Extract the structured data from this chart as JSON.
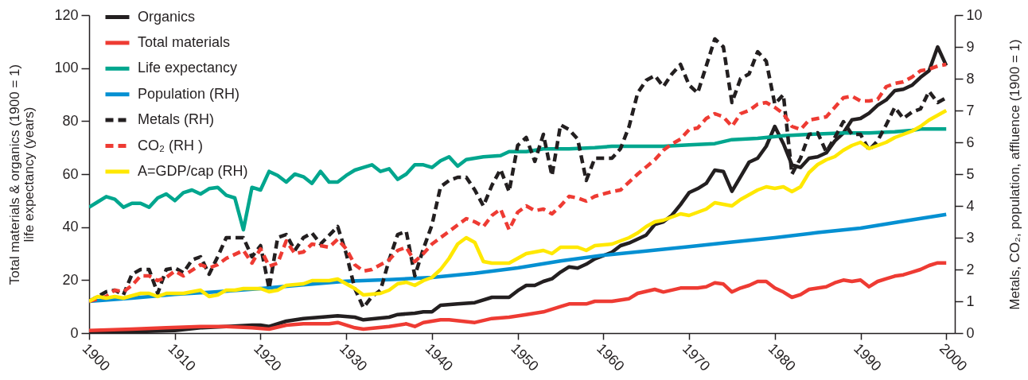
{
  "chart_data": {
    "type": "line",
    "xlim": [
      1900,
      2001
    ],
    "xticks": [
      1900,
      1910,
      1920,
      1930,
      1940,
      1950,
      1960,
      1970,
      1980,
      1990,
      2000
    ],
    "ylim": [
      0,
      120
    ],
    "yticks": [
      0,
      20,
      40,
      60,
      80,
      100,
      120
    ],
    "y2lim": [
      0,
      10
    ],
    "y2ticks": [
      0,
      1,
      2,
      3,
      4,
      5,
      6,
      7,
      8,
      9,
      10
    ],
    "ylabel": "Total materials & organics (1900 = 1)\nlife expectancy (years)",
    "y2label": "Metals, CO₂, population, affluence (1900 = 1)",
    "legend": "top left",
    "series": [
      {
        "name": "Organics",
        "color": "#231f20",
        "line_style": "solid",
        "x": [
          1900,
          1905,
          1910,
          1913,
          1916,
          1919,
          1920,
          1921,
          1923,
          1925,
          1927,
          1929,
          1931,
          1932,
          1935,
          1936,
          1938,
          1939,
          1940,
          1941,
          1943,
          1945,
          1947,
          1949,
          1950,
          1951,
          1952,
          1953,
          1954,
          1955,
          1956,
          1957,
          1958,
          1959,
          1961,
          1962,
          1963,
          1965,
          1966,
          1967,
          1968,
          1969,
          1970,
          1971,
          1972,
          1973,
          1974,
          1975,
          1976,
          1977,
          1978,
          1979,
          1980,
          1981,
          1982,
          1983,
          1984,
          1985,
          1986,
          1987,
          1988,
          1989,
          1990,
          1991,
          1992,
          1993,
          1994,
          1995,
          1996,
          1997,
          1998,
          1999,
          2000
        ],
        "values": [
          0.5,
          0.5,
          1,
          2,
          2.5,
          3,
          3,
          2.5,
          4.5,
          5.5,
          6,
          6.5,
          6,
          5,
          6,
          7,
          7.5,
          8,
          8,
          10.5,
          11,
          11.5,
          13.5,
          13.5,
          16,
          18,
          18,
          19.5,
          20.5,
          23,
          25,
          24.5,
          26,
          28,
          30.5,
          33,
          34,
          37,
          41,
          42,
          44.5,
          48.5,
          53,
          54.5,
          56.5,
          61.5,
          61,
          53.5,
          59,
          64.5,
          66,
          70.5,
          78,
          71.5,
          63.5,
          62.5,
          66,
          66.5,
          68,
          72.5,
          75.5,
          80.5,
          81,
          83,
          86,
          88,
          91.5,
          92,
          93.5,
          96.5,
          99,
          108,
          101
        ]
      },
      {
        "name": "Total materials",
        "color": "#ee3b33",
        "line_style": "solid",
        "x": [
          1900,
          1905,
          1909,
          1913,
          1916,
          1919,
          1921,
          1923,
          1925,
          1928,
          1929,
          1931,
          1932,
          1935,
          1937,
          1938,
          1939,
          1941,
          1942,
          1945,
          1947,
          1949,
          1951,
          1953,
          1955,
          1956,
          1958,
          1959,
          1961,
          1963,
          1964,
          1966,
          1967,
          1969,
          1971,
          1972,
          1973,
          1974,
          1975,
          1976,
          1977,
          1978,
          1979,
          1980,
          1981,
          1982,
          1983,
          1984,
          1986,
          1987,
          1988,
          1989,
          1990,
          1991,
          1992,
          1993,
          1994,
          1995,
          1996,
          1997,
          1998,
          1999,
          2000
        ],
        "values": [
          1,
          1.5,
          2,
          2.5,
          2.5,
          2,
          1.5,
          3,
          3.5,
          3.5,
          4,
          2,
          1.5,
          2.5,
          3.5,
          2.5,
          4,
          5,
          5,
          4,
          5.5,
          6,
          7,
          8,
          10,
          11,
          11,
          12,
          12,
          13,
          15,
          16.5,
          15.5,
          17,
          17,
          17.5,
          19,
          18.5,
          15.5,
          17,
          18,
          19.5,
          19.5,
          17,
          15.5,
          13.5,
          14.5,
          16.5,
          17.5,
          19,
          20,
          19.5,
          20,
          17.5,
          19.5,
          20.5,
          21.5,
          22,
          23,
          24,
          25.5,
          26.5,
          26.5
        ]
      },
      {
        "name": "Life expectancy",
        "color": "#00a68e",
        "line_style": "solid",
        "x": [
          1900,
          1901,
          1902,
          1903,
          1904,
          1905,
          1906,
          1907,
          1908,
          1909,
          1910,
          1911,
          1912,
          1913,
          1914,
          1915,
          1916,
          1917,
          1918,
          1919,
          1920,
          1921,
          1922,
          1923,
          1924,
          1925,
          1926,
          1927,
          1928,
          1929,
          1930,
          1931,
          1932,
          1933,
          1934,
          1935,
          1936,
          1937,
          1938,
          1939,
          1940,
          1941,
          1942,
          1943,
          1944,
          1946,
          1948,
          1949,
          1951,
          1953,
          1956,
          1959,
          1961,
          1964,
          1967,
          1970,
          1973,
          1975,
          1978,
          1981,
          1984,
          1988,
          1991,
          1994,
          1996,
          1997,
          2000
        ],
        "values": [
          47.5,
          49.5,
          51.5,
          50.5,
          47.5,
          49,
          49,
          47.5,
          51,
          52.5,
          50,
          53,
          54,
          52.5,
          54.5,
          55,
          52,
          51,
          39,
          55,
          54,
          61,
          59.5,
          57,
          60,
          59,
          56.5,
          61,
          57,
          57,
          59.5,
          61.5,
          62.5,
          63.5,
          61,
          62,
          58,
          60,
          63.5,
          63.5,
          62.5,
          65,
          66.5,
          63,
          65.5,
          66.5,
          67,
          68.5,
          68.5,
          69.5,
          69.5,
          70,
          70.5,
          70.5,
          70.5,
          71,
          71.5,
          73,
          73.5,
          74.5,
          75,
          75.5,
          75.5,
          76,
          76.5,
          77,
          77
        ]
      },
      {
        "name": "Population (RH)",
        "color": "#0590d2",
        "line_style": "solid",
        "axis": "y2",
        "x": [
          1900,
          1905,
          1910,
          1915,
          1920,
          1925,
          1930,
          1935,
          1940,
          1945,
          1950,
          1955,
          1960,
          1965,
          1970,
          1975,
          1980,
          1985,
          1990,
          1995,
          2000
        ],
        "values": [
          1,
          1.1,
          1.22,
          1.3,
          1.4,
          1.52,
          1.63,
          1.68,
          1.75,
          1.88,
          2.05,
          2.27,
          2.45,
          2.58,
          2.72,
          2.86,
          3,
          3.16,
          3.3,
          3.52,
          3.73
        ]
      },
      {
        "name": "Metals (RH)",
        "color": "#231f20",
        "line_style": "dashed",
        "axis": "y2",
        "x": [
          1900,
          1902,
          1903,
          1904,
          1905,
          1906,
          1907,
          1908,
          1909,
          1910,
          1911,
          1912,
          1913,
          1914,
          1915,
          1916,
          1918,
          1919,
          1920,
          1921,
          1922,
          1923,
          1924,
          1925,
          1926,
          1927,
          1929,
          1930,
          1931,
          1932,
          1933,
          1934,
          1935,
          1936,
          1937,
          1938,
          1939,
          1940,
          1941,
          1942,
          1943,
          1944,
          1945,
          1946,
          1947,
          1948,
          1949,
          1950,
          1951,
          1952,
          1953,
          1954,
          1955,
          1956,
          1957,
          1958,
          1959,
          1961,
          1962,
          1963,
          1964,
          1965,
          1966,
          1967,
          1968,
          1969,
          1970,
          1971,
          1972,
          1973,
          1974,
          1975,
          1976,
          1977,
          1978,
          1979,
          1980,
          1981,
          1982,
          1983,
          1984,
          1985,
          1986,
          1987,
          1988,
          1989,
          1990,
          1991,
          1992,
          1993,
          1994,
          1995,
          1996,
          1997,
          1998,
          1999,
          2000
        ],
        "values": [
          1,
          1.3,
          1.35,
          1.2,
          1.85,
          2,
          2,
          1.25,
          2,
          2.05,
          1.9,
          2.3,
          2.4,
          1.85,
          2.4,
          3,
          3,
          2.4,
          2.75,
          1.4,
          3,
          3.1,
          2.6,
          3,
          3.15,
          2.8,
          3.35,
          2.5,
          1.4,
          0.8,
          1.15,
          1.35,
          2.3,
          3.1,
          3.2,
          1.8,
          2.65,
          3.4,
          4.6,
          4.8,
          4.9,
          4.9,
          4.5,
          4,
          4.65,
          5.15,
          4.45,
          5.9,
          6.15,
          5.4,
          6.25,
          4.95,
          6.55,
          6.4,
          6.1,
          4.8,
          5.5,
          5.5,
          5.8,
          6.5,
          7.55,
          7.95,
          8.1,
          7.75,
          8.15,
          8.45,
          7.8,
          7.55,
          8.4,
          9.25,
          9,
          7.25,
          8,
          8.15,
          8.85,
          8.55,
          7.2,
          7.5,
          5,
          5.5,
          6.25,
          6.3,
          5.7,
          6.15,
          6.65,
          6.25,
          6.25,
          5.75,
          6.05,
          6.55,
          7.1,
          6.75,
          6.95,
          7.05,
          7.6,
          7.25,
          7.4
        ]
      },
      {
        "name": "CO₂ (RH )",
        "color": "#ee3b33",
        "line_style": "dashed",
        "axis": "y2",
        "x": [
          1900,
          1902,
          1903,
          1904,
          1905,
          1906,
          1907,
          1908,
          1909,
          1910,
          1911,
          1913,
          1914,
          1915,
          1916,
          1918,
          1919,
          1920,
          1921,
          1922,
          1923,
          1924,
          1925,
          1926,
          1927,
          1928,
          1929,
          1930,
          1931,
          1932,
          1933,
          1935,
          1936,
          1937,
          1938,
          1939,
          1940,
          1942,
          1943,
          1944,
          1945,
          1946,
          1947,
          1948,
          1949,
          1950,
          1951,
          1952,
          1953,
          1954,
          1955,
          1956,
          1957,
          1958,
          1959,
          1961,
          1962,
          1963,
          1964,
          1966,
          1967,
          1968,
          1969,
          1970,
          1971,
          1972,
          1973,
          1974,
          1975,
          1976,
          1977,
          1978,
          1979,
          1980,
          1981,
          1982,
          1983,
          1984,
          1985,
          1986,
          1987,
          1988,
          1989,
          1990,
          1991,
          1992,
          1993,
          1994,
          1995,
          1996,
          1997,
          1998,
          1999,
          2000
        ],
        "values": [
          1,
          1.15,
          1.35,
          1.3,
          1.5,
          1.8,
          1.8,
          1.65,
          1.75,
          1.95,
          1.8,
          2.15,
          2.05,
          2.15,
          2.35,
          2.6,
          2.2,
          2.65,
          2.1,
          2.2,
          2.9,
          2.5,
          2.55,
          2.8,
          2.75,
          2.7,
          2.95,
          2.65,
          2.15,
          1.95,
          2,
          2.3,
          2.6,
          2.7,
          2.25,
          2.5,
          2.8,
          3.2,
          3.4,
          3.6,
          3.5,
          3.35,
          3.7,
          3.9,
          3.25,
          3.8,
          4,
          3.85,
          3.9,
          3.75,
          4,
          4.3,
          4.25,
          4.15,
          4.3,
          4.45,
          4.5,
          4.75,
          5,
          5.45,
          5.75,
          5.95,
          6.1,
          6.4,
          6.45,
          6.75,
          6.9,
          6.8,
          6.5,
          6.9,
          7,
          7.2,
          7.25,
          7.1,
          6.9,
          6.5,
          6.4,
          6.7,
          6.75,
          6.8,
          7.1,
          7.4,
          7.45,
          7.3,
          7.3,
          7.35,
          7.75,
          7.85,
          7.9,
          8.05,
          8.25,
          8.3,
          8.4,
          8.45
        ]
      },
      {
        "name": "A=GDP/cap (RH)",
        "color": "#ffe800",
        "line_style": "solid",
        "axis": "y2",
        "x": [
          1900,
          1901,
          1902,
          1903,
          1904,
          1906,
          1907,
          1908,
          1909,
          1911,
          1913,
          1914,
          1915,
          1916,
          1917,
          1918,
          1920,
          1921,
          1922,
          1923,
          1925,
          1926,
          1928,
          1929,
          1930,
          1931,
          1932,
          1934,
          1935,
          1936,
          1937,
          1938,
          1939,
          1940,
          1941,
          1942,
          1943,
          1944,
          1945,
          1946,
          1947,
          1948,
          1949,
          1950,
          1951,
          1953,
          1954,
          1955,
          1957,
          1958,
          1959,
          1961,
          1962,
          1963,
          1964,
          1965,
          1966,
          1967,
          1968,
          1969,
          1970,
          1971,
          1972,
          1973,
          1974,
          1975,
          1976,
          1977,
          1978,
          1979,
          1980,
          1981,
          1982,
          1983,
          1984,
          1985,
          1986,
          1987,
          1988,
          1989,
          1990,
          1991,
          1992,
          1993,
          1994,
          1995,
          1996,
          1997,
          1998,
          1999,
          2000
        ],
        "values": [
          1,
          1.15,
          1.1,
          1.15,
          1.1,
          1.25,
          1.25,
          1.15,
          1.25,
          1.25,
          1.35,
          1.15,
          1.2,
          1.35,
          1.35,
          1.4,
          1.4,
          1.3,
          1.35,
          1.5,
          1.55,
          1.65,
          1.65,
          1.7,
          1.55,
          1.4,
          1.2,
          1.25,
          1.35,
          1.55,
          1.6,
          1.5,
          1.65,
          1.75,
          2,
          2.35,
          2.8,
          3,
          2.85,
          2.25,
          2.2,
          2.2,
          2.2,
          2.35,
          2.5,
          2.6,
          2.5,
          2.7,
          2.7,
          2.6,
          2.75,
          2.8,
          2.9,
          3,
          3.15,
          3.35,
          3.5,
          3.55,
          3.65,
          3.75,
          3.7,
          3.8,
          3.9,
          4.1,
          4.05,
          4,
          4.2,
          4.35,
          4.5,
          4.6,
          4.55,
          4.6,
          4.45,
          4.6,
          5.05,
          5.3,
          5.45,
          5.55,
          5.75,
          5.9,
          6,
          5.8,
          5.9,
          6,
          6.15,
          6.25,
          6.35,
          6.5,
          6.7,
          6.85,
          7
        ]
      }
    ]
  }
}
